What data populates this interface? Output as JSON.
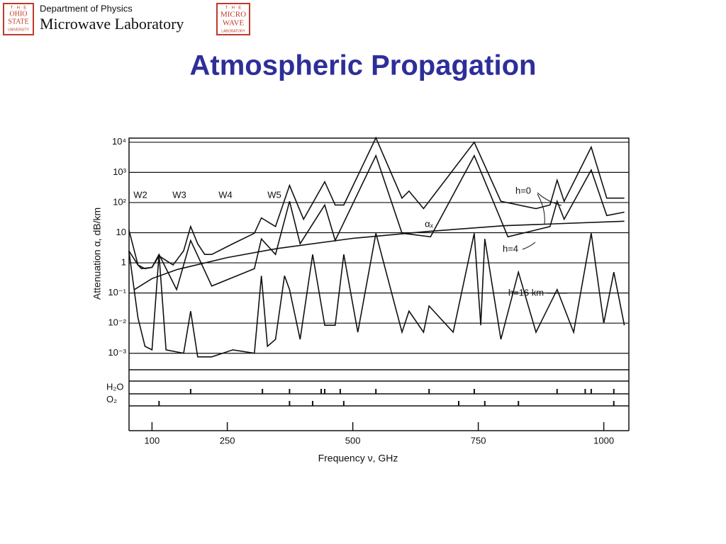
{
  "header": {
    "department": "Department of Physics",
    "lab": "Microwave Laboratory",
    "logo_left": [
      "T · H · E",
      "OHIO",
      "STATE",
      "UNIVERSITY"
    ],
    "logo_right": [
      "T · H · E",
      "MICRO",
      "WAVE",
      "LABORATORY"
    ]
  },
  "chart_data": {
    "type": "line",
    "title": "Atmospheric Propagation",
    "x_label": "Frequency ν, GHz",
    "y_label": "Attenuation α, dB/km",
    "yscale": "log",
    "grid": true,
    "xlim": [
      50,
      1050
    ],
    "ylim": [
      0.0003,
      20000
    ],
    "xticks": [
      100,
      250,
      500,
      750,
      1000
    ],
    "yticks": [
      {
        "value": 0.001,
        "label": "10⁻³"
      },
      {
        "value": 0.01,
        "label": "10⁻²"
      },
      {
        "value": 0.1,
        "label": "10⁻¹"
      },
      1,
      10,
      {
        "value": 100,
        "label": "10²"
      },
      {
        "value": 1000,
        "label": "10³"
      },
      {
        "value": 10000,
        "label": "10⁴"
      }
    ],
    "annotations": [
      "W2",
      "W3",
      "W4",
      "W5",
      "h=0",
      "h=4",
      "h=16 km",
      "αₓ"
    ],
    "series": [
      {
        "name": "h=0",
        "color": "#111111",
        "x": [
          54,
          72,
          79,
          100,
          114,
          142,
          163,
          177,
          191,
          205,
          219,
          261,
          304,
          318,
          346,
          374,
          402,
          444,
          465,
          482,
          546,
          598,
          612,
          641,
          742,
          795,
          865,
          893,
          907,
          921,
          975,
          1006,
          1041
        ],
        "values": [
          12.5,
          0.85,
          0.64,
          0.71,
          1.7,
          0.85,
          2.5,
          16,
          4.3,
          1.9,
          1.9,
          4.3,
          9.6,
          31,
          16,
          370,
          28,
          490,
          83,
          83,
          14000,
          140,
          240,
          63,
          10000,
          110,
          63,
          83,
          550,
          110,
          6900,
          140,
          140
        ]
      },
      {
        "name": "h=4",
        "color": "#111111",
        "x": [
          54,
          72,
          86,
          100,
          114,
          149,
          177,
          219,
          304,
          318,
          346,
          374,
          395,
          444,
          465,
          546,
          598,
          655,
          742,
          809,
          893,
          907,
          921,
          975,
          1006,
          1041
        ],
        "values": [
          2.5,
          0.85,
          0.64,
          0.71,
          1.9,
          0.13,
          5.5,
          0.17,
          0.64,
          6.2,
          1.9,
          110,
          4.3,
          83,
          5.5,
          3600,
          9.6,
          7.3,
          3600,
          7.3,
          16,
          110,
          28,
          1200,
          37,
          48
        ]
      },
      {
        "name": "h=16 km",
        "color": "#111111",
        "x": [
          54,
          72,
          86,
          100,
          114,
          128,
          163,
          177,
          191,
          219,
          261,
          304,
          318,
          330,
          346,
          364,
          374,
          395,
          420,
          444,
          465,
          482,
          510,
          546,
          598,
          612,
          641,
          652,
          700,
          742,
          755,
          763,
          795,
          830,
          865,
          907,
          940,
          975,
          1000,
          1020,
          1041
        ],
        "values": [
          2.5,
          0.015,
          0.0017,
          0.0013,
          1.9,
          0.0013,
          0.001,
          0.025,
          0.00076,
          0.00076,
          0.0013,
          0.001,
          0.37,
          0.0017,
          0.0029,
          0.37,
          0.13,
          0.0029,
          1.9,
          0.0085,
          0.0085,
          1.9,
          0.005,
          9.6,
          0.005,
          0.025,
          0.005,
          0.037,
          0.005,
          9.6,
          0.0085,
          6.2,
          0.0029,
          0.49,
          0.005,
          0.13,
          0.005,
          9.6,
          0.01,
          0.49,
          0.0085
        ]
      },
      {
        "name": "αₓ",
        "color": "#111111",
        "x": [
          65,
          100,
          150,
          250,
          350,
          500,
          650,
          800,
          1041
        ],
        "values": [
          0.13,
          0.3,
          0.6,
          1.5,
          3,
          6.5,
          11,
          17,
          24
        ]
      }
    ],
    "line_rows": [
      {
        "label": "H₂O",
        "x": [
          177,
          320,
          374,
          437,
          444,
          475,
          546,
          652,
          742,
          907,
          963,
          975,
          1020
        ]
      },
      {
        "label": "O₂",
        "x": [
          114,
          374,
          420,
          482,
          711,
          763,
          830,
          1020
        ]
      }
    ]
  }
}
